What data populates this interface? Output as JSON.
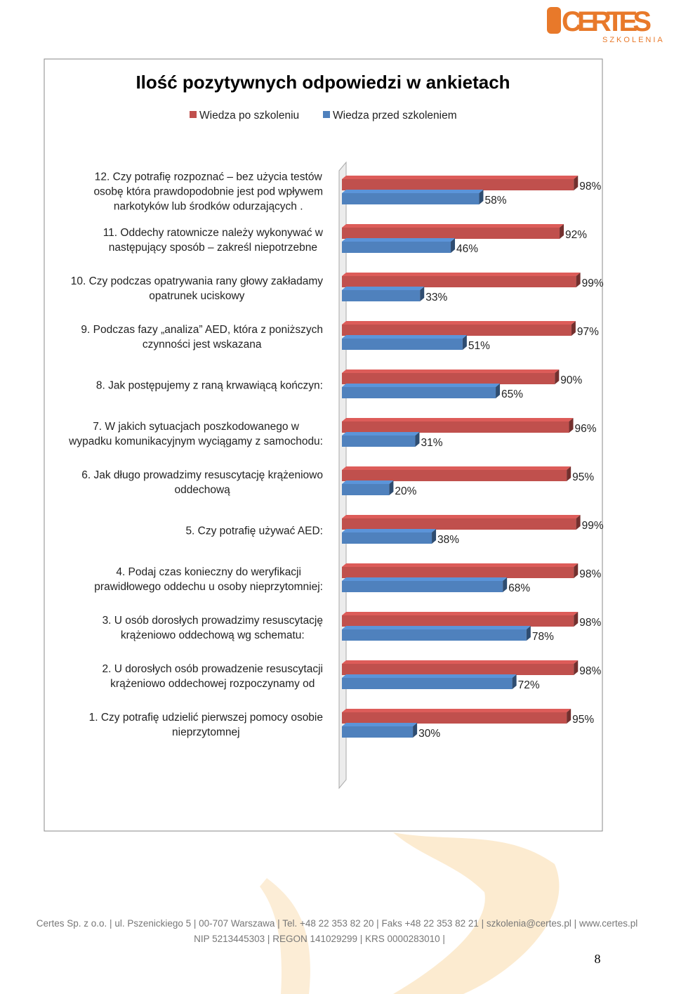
{
  "header": {
    "logo": "CERTES",
    "logo_sub": "SZKOLENIA"
  },
  "chart_data": {
    "type": "bar",
    "orientation": "horizontal",
    "title": "Ilość pozytywnych odpowiedzi w ankietach",
    "categories": [
      "12.  Czy potrafię rozpoznać – bez użycia testów\nosobę która prawdopodobnie jest pod wpływem\nnarkotyków lub  środków odurzających .",
      "11.  Oddechy ratownicze należy wykonywać w\nnastępujący sposób – zakreśl niepotrzebne",
      "10.  Czy podczas opatrywania rany głowy zakładamy\nopatrunek uciskowy",
      "9.  Podczas fazy „analiza” AED, która z poniższych\nczynności jest wskazana",
      "8.  Jak postępujemy z raną krwawiącą kończyn:",
      "7.  W jakich sytuacjach poszkodowanego w\nwypadku komunikacyjnym wyciągamy z samochodu:",
      "6.  Jak długo prowadzimy resuscytację krążeniowo\noddechową",
      "5.  Czy potrafię używać AED:",
      "4.  Podaj czas konieczny do weryfikacji\nprawidłowego oddechu u osoby nieprzytomniej:",
      "3.  U osób dorosłych prowadzimy resuscytację\nkrążeniowo oddechową wg schematu:",
      "2.  U dorosłych osób prowadzenie resuscytacji\nkrążeniowo oddechowej rozpoczynamy od",
      "1.  Czy potrafię udzielić pierwszej pomocy osobie\nnieprzytomnej"
    ],
    "series": [
      {
        "name": "Wiedza po szkoleniu",
        "color": "#c0504d",
        "values": [
          98,
          92,
          99,
          97,
          90,
          96,
          95,
          99,
          98,
          98,
          98,
          95
        ],
        "value_labels": [
          "98%",
          "92%",
          "99%",
          "97%",
          "90%",
          "96%",
          "95%",
          "99%",
          "98%",
          "98%",
          "98%",
          "95%"
        ]
      },
      {
        "name": "Wiedza przed szkoleniem",
        "color": "#4f81bd",
        "values": [
          58,
          46,
          33,
          51,
          65,
          31,
          20,
          38,
          68,
          78,
          72,
          30
        ],
        "value_labels": [
          "58%",
          "46%",
          "33%",
          "51%",
          "65%",
          "31%",
          "20%",
          "38%",
          "68%",
          "78%",
          "72%",
          "30%"
        ]
      }
    ],
    "xlim": [
      0,
      100
    ],
    "legend": "top"
  },
  "footer": {
    "line1": "Certes Sp. z o.o. | ul. Pszenickiego 5 | 00-707 Warszawa | Tel. +48 22 353 82 20 | Faks +48 22 353 82 21 | szkolenia@certes.pl | www.certes.pl",
    "line2": "NIP 5213445303 | REGON 141029299 | KRS 0000283010 |",
    "page_number": "8"
  }
}
